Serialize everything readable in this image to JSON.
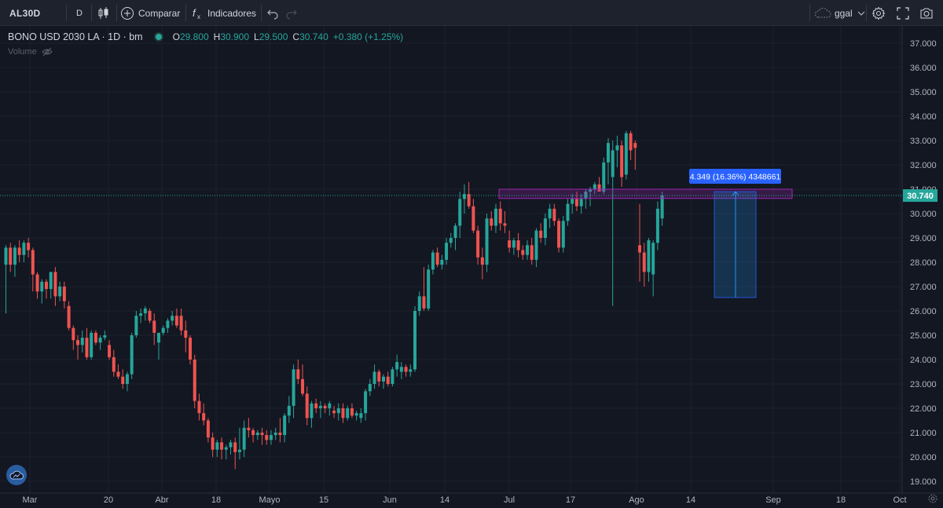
{
  "toolbar": {
    "symbol": "AL30D",
    "interval": "D",
    "compare_label": "Comparar",
    "indicators_label": "Indicadores",
    "layout_name": "ggal",
    "icons": [
      "bar-style-icon",
      "compare-plus-icon",
      "indicators-fx-icon",
      "undo-icon",
      "redo-icon",
      "cloud-icon",
      "settings-gear-icon",
      "fullscreen-icon",
      "camera-icon"
    ]
  },
  "legend": {
    "title": "BONO USD 2030 LA · 1D · bm",
    "open_label": "O",
    "open": "29.800",
    "high_label": "H",
    "high": "30.900",
    "low_label": "L",
    "low": "29.500",
    "close_label": "C",
    "close": "30.740",
    "change": "+0.380 (+1.25%)",
    "volume_label": "Volume"
  },
  "colors": {
    "up": "#26a69a",
    "down": "#ef5350",
    "background": "#131722",
    "grid": "#1e222d",
    "accent": "#2962ff"
  },
  "chart_data": {
    "type": "candlestick",
    "symbol": "BONO USD 2030 LA",
    "interval": "1D",
    "ylim": [
      18.6,
      37.6
    ],
    "y_ticks": [
      "37.000",
      "36.000",
      "35.000",
      "34.000",
      "33.000",
      "32.000",
      "31.000",
      "30.000",
      "29.000",
      "28.000",
      "27.000",
      "26.000",
      "25.000",
      "24.000",
      "23.000",
      "22.000",
      "21.000",
      "20.000",
      "19.000"
    ],
    "x_ticks": [
      "Mar",
      "20",
      "Abr",
      "18",
      "Mayo",
      "15",
      "Jun",
      "14",
      "Jul",
      "17",
      "Ago",
      "14",
      "Sep",
      "18",
      "Oct"
    ],
    "last_price": "30.740",
    "measure_label": "4.349 (16.36%) 4348661",
    "candles": [
      {
        "o": 27.9,
        "h": 28.7,
        "l": 25.9,
        "c": 28.6
      },
      {
        "o": 28.6,
        "h": 28.8,
        "l": 27.6,
        "c": 27.9
      },
      {
        "o": 27.9,
        "h": 28.7,
        "l": 27.4,
        "c": 28.6
      },
      {
        "o": 28.6,
        "h": 28.9,
        "l": 28.0,
        "c": 28.3
      },
      {
        "o": 28.3,
        "h": 28.9,
        "l": 28.0,
        "c": 28.8
      },
      {
        "o": 28.8,
        "h": 29.0,
        "l": 28.2,
        "c": 28.5
      },
      {
        "o": 28.5,
        "h": 28.6,
        "l": 26.8,
        "c": 27.5
      },
      {
        "o": 27.5,
        "h": 27.6,
        "l": 26.5,
        "c": 26.8
      },
      {
        "o": 26.8,
        "h": 27.3,
        "l": 26.3,
        "c": 27.2
      },
      {
        "o": 27.2,
        "h": 27.3,
        "l": 26.5,
        "c": 26.9
      },
      {
        "o": 26.9,
        "h": 27.6,
        "l": 26.5,
        "c": 27.6
      },
      {
        "o": 27.6,
        "h": 27.8,
        "l": 26.2,
        "c": 26.6
      },
      {
        "o": 26.6,
        "h": 27.2,
        "l": 26.4,
        "c": 27.0
      },
      {
        "o": 27.0,
        "h": 27.2,
        "l": 26.1,
        "c": 26.4
      },
      {
        "o": 26.2,
        "h": 26.4,
        "l": 25.2,
        "c": 25.3
      },
      {
        "o": 25.3,
        "h": 25.4,
        "l": 24.4,
        "c": 24.8
      },
      {
        "o": 24.8,
        "h": 25.0,
        "l": 24.0,
        "c": 24.6
      },
      {
        "o": 24.6,
        "h": 25.2,
        "l": 24.3,
        "c": 24.9
      },
      {
        "o": 24.9,
        "h": 25.3,
        "l": 24.0,
        "c": 24.1
      },
      {
        "o": 24.1,
        "h": 25.2,
        "l": 24.0,
        "c": 25.1
      },
      {
        "o": 25.1,
        "h": 25.2,
        "l": 24.6,
        "c": 24.7
      },
      {
        "o": 24.7,
        "h": 25.0,
        "l": 24.4,
        "c": 24.9
      },
      {
        "o": 24.9,
        "h": 25.2,
        "l": 24.8,
        "c": 25.0
      },
      {
        "o": 24.6,
        "h": 24.8,
        "l": 24.0,
        "c": 24.1
      },
      {
        "o": 24.1,
        "h": 24.4,
        "l": 23.3,
        "c": 23.5
      },
      {
        "o": 23.5,
        "h": 23.8,
        "l": 23.2,
        "c": 23.3
      },
      {
        "o": 23.3,
        "h": 23.6,
        "l": 22.8,
        "c": 23.0
      },
      {
        "o": 23.0,
        "h": 23.5,
        "l": 22.7,
        "c": 23.4
      },
      {
        "o": 23.4,
        "h": 25.1,
        "l": 23.2,
        "c": 25.0
      },
      {
        "o": 25.0,
        "h": 26.0,
        "l": 24.9,
        "c": 25.8
      },
      {
        "o": 25.8,
        "h": 26.1,
        "l": 25.5,
        "c": 25.9
      },
      {
        "o": 25.9,
        "h": 26.2,
        "l": 25.6,
        "c": 26.1
      },
      {
        "o": 26.0,
        "h": 26.1,
        "l": 25.5,
        "c": 25.6
      },
      {
        "o": 25.6,
        "h": 25.9,
        "l": 24.6,
        "c": 25.1
      },
      {
        "o": 24.7,
        "h": 25.1,
        "l": 24.0,
        "c": 25.1
      },
      {
        "o": 25.1,
        "h": 25.4,
        "l": 25.0,
        "c": 25.3
      },
      {
        "o": 25.3,
        "h": 25.7,
        "l": 25.1,
        "c": 25.6
      },
      {
        "o": 25.6,
        "h": 26.0,
        "l": 25.4,
        "c": 25.8
      },
      {
        "o": 25.8,
        "h": 26.1,
        "l": 25.3,
        "c": 25.4
      },
      {
        "o": 25.8,
        "h": 26.1,
        "l": 25.0,
        "c": 25.2
      },
      {
        "o": 25.2,
        "h": 25.6,
        "l": 24.3,
        "c": 24.9
      },
      {
        "o": 24.9,
        "h": 25.0,
        "l": 23.8,
        "c": 24.0
      },
      {
        "o": 24.0,
        "h": 24.2,
        "l": 22.0,
        "c": 22.3
      },
      {
        "o": 22.3,
        "h": 22.6,
        "l": 21.5,
        "c": 21.8
      },
      {
        "o": 21.8,
        "h": 22.2,
        "l": 21.3,
        "c": 21.5
      },
      {
        "o": 21.5,
        "h": 21.6,
        "l": 20.6,
        "c": 20.8
      },
      {
        "o": 20.8,
        "h": 21.0,
        "l": 20.0,
        "c": 20.3
      },
      {
        "o": 20.3,
        "h": 20.7,
        "l": 20.0,
        "c": 20.6
      },
      {
        "o": 20.6,
        "h": 20.8,
        "l": 19.9,
        "c": 20.3
      },
      {
        "o": 20.3,
        "h": 20.5,
        "l": 19.9,
        "c": 20.4
      },
      {
        "o": 20.4,
        "h": 20.7,
        "l": 20.1,
        "c": 20.6
      },
      {
        "o": 20.6,
        "h": 20.8,
        "l": 19.5,
        "c": 20.2
      },
      {
        "o": 20.2,
        "h": 21.2,
        "l": 19.9,
        "c": 20.3
      },
      {
        "o": 20.3,
        "h": 21.5,
        "l": 20.0,
        "c": 21.2
      },
      {
        "o": 21.2,
        "h": 21.6,
        "l": 20.8,
        "c": 21.1
      },
      {
        "o": 21.1,
        "h": 21.2,
        "l": 20.6,
        "c": 20.9
      },
      {
        "o": 20.9,
        "h": 21.1,
        "l": 20.7,
        "c": 21.0
      },
      {
        "o": 21.0,
        "h": 21.2,
        "l": 20.5,
        "c": 20.9
      },
      {
        "o": 20.9,
        "h": 21.1,
        "l": 20.5,
        "c": 20.7
      },
      {
        "o": 20.7,
        "h": 21.1,
        "l": 20.5,
        "c": 20.9
      },
      {
        "o": 20.9,
        "h": 21.2,
        "l": 20.7,
        "c": 21.0
      },
      {
        "o": 21.0,
        "h": 21.6,
        "l": 20.6,
        "c": 20.9
      },
      {
        "o": 20.9,
        "h": 21.8,
        "l": 20.6,
        "c": 21.7
      },
      {
        "o": 21.7,
        "h": 22.5,
        "l": 21.4,
        "c": 22.1
      },
      {
        "o": 22.1,
        "h": 23.8,
        "l": 21.6,
        "c": 23.6
      },
      {
        "o": 23.6,
        "h": 24.0,
        "l": 23.0,
        "c": 23.2
      },
      {
        "o": 23.2,
        "h": 23.8,
        "l": 22.5,
        "c": 22.6
      },
      {
        "o": 22.6,
        "h": 22.9,
        "l": 21.3,
        "c": 21.6
      },
      {
        "o": 21.6,
        "h": 22.3,
        "l": 21.2,
        "c": 22.2
      },
      {
        "o": 22.2,
        "h": 22.4,
        "l": 21.8,
        "c": 22.0
      },
      {
        "o": 22.0,
        "h": 22.3,
        "l": 21.6,
        "c": 22.1
      },
      {
        "o": 22.1,
        "h": 22.2,
        "l": 21.8,
        "c": 22.0
      },
      {
        "o": 22.0,
        "h": 22.3,
        "l": 21.7,
        "c": 22.2
      },
      {
        "o": 21.9,
        "h": 22.1,
        "l": 21.6,
        "c": 21.8
      },
      {
        "o": 21.8,
        "h": 22.2,
        "l": 21.5,
        "c": 22.0
      },
      {
        "o": 22.0,
        "h": 22.2,
        "l": 21.4,
        "c": 21.6
      },
      {
        "o": 21.6,
        "h": 22.1,
        "l": 21.5,
        "c": 22.0
      },
      {
        "o": 22.0,
        "h": 22.2,
        "l": 21.6,
        "c": 21.7
      },
      {
        "o": 21.7,
        "h": 21.9,
        "l": 21.5,
        "c": 21.8
      },
      {
        "o": 21.6,
        "h": 22.0,
        "l": 21.4,
        "c": 21.8
      },
      {
        "o": 21.8,
        "h": 22.8,
        "l": 21.5,
        "c": 22.7
      },
      {
        "o": 22.7,
        "h": 23.2,
        "l": 22.5,
        "c": 23.0
      },
      {
        "o": 23.0,
        "h": 23.8,
        "l": 22.8,
        "c": 23.5
      },
      {
        "o": 23.5,
        "h": 23.6,
        "l": 22.9,
        "c": 23.1
      },
      {
        "o": 23.1,
        "h": 23.4,
        "l": 22.8,
        "c": 23.3
      },
      {
        "o": 23.3,
        "h": 23.5,
        "l": 22.9,
        "c": 23.0
      },
      {
        "o": 23.0,
        "h": 23.7,
        "l": 22.9,
        "c": 23.6
      },
      {
        "o": 23.6,
        "h": 24.2,
        "l": 23.3,
        "c": 23.9
      },
      {
        "o": 23.5,
        "h": 23.9,
        "l": 23.2,
        "c": 23.7
      },
      {
        "o": 23.7,
        "h": 23.8,
        "l": 23.3,
        "c": 23.5
      },
      {
        "o": 23.5,
        "h": 23.8,
        "l": 23.3,
        "c": 23.6
      },
      {
        "o": 23.6,
        "h": 26.2,
        "l": 23.5,
        "c": 26.0
      },
      {
        "o": 26.0,
        "h": 26.8,
        "l": 25.8,
        "c": 26.6
      },
      {
        "o": 26.6,
        "h": 27.8,
        "l": 26.0,
        "c": 26.1
      },
      {
        "o": 26.1,
        "h": 27.9,
        "l": 26.0,
        "c": 27.7
      },
      {
        "o": 27.7,
        "h": 28.5,
        "l": 27.5,
        "c": 28.4
      },
      {
        "o": 28.4,
        "h": 28.6,
        "l": 27.8,
        "c": 27.9
      },
      {
        "o": 27.9,
        "h": 28.3,
        "l": 27.7,
        "c": 28.1
      },
      {
        "o": 28.1,
        "h": 29.0,
        "l": 27.9,
        "c": 28.8
      },
      {
        "o": 28.8,
        "h": 29.2,
        "l": 28.6,
        "c": 29.0
      },
      {
        "o": 29.0,
        "h": 29.6,
        "l": 28.5,
        "c": 29.5
      },
      {
        "o": 29.5,
        "h": 30.9,
        "l": 29.0,
        "c": 30.6
      },
      {
        "o": 30.6,
        "h": 31.2,
        "l": 30.0,
        "c": 30.8
      },
      {
        "o": 30.8,
        "h": 31.3,
        "l": 30.2,
        "c": 30.3
      },
      {
        "o": 30.3,
        "h": 30.6,
        "l": 29.2,
        "c": 29.3
      },
      {
        "o": 29.3,
        "h": 29.5,
        "l": 27.9,
        "c": 28.2
      },
      {
        "o": 28.2,
        "h": 28.6,
        "l": 27.3,
        "c": 27.9
      },
      {
        "o": 27.9,
        "h": 30.0,
        "l": 27.6,
        "c": 29.8
      },
      {
        "o": 29.8,
        "h": 30.1,
        "l": 29.3,
        "c": 29.5
      },
      {
        "o": 29.5,
        "h": 30.4,
        "l": 29.2,
        "c": 30.2
      },
      {
        "o": 30.2,
        "h": 30.5,
        "l": 29.3,
        "c": 29.6
      },
      {
        "o": 29.6,
        "h": 30.1,
        "l": 29.2,
        "c": 29.5
      },
      {
        "o": 28.9,
        "h": 29.3,
        "l": 28.4,
        "c": 28.6
      },
      {
        "o": 28.6,
        "h": 29.0,
        "l": 28.3,
        "c": 28.9
      },
      {
        "o": 28.9,
        "h": 29.2,
        "l": 28.2,
        "c": 28.5
      },
      {
        "o": 28.5,
        "h": 28.7,
        "l": 28.1,
        "c": 28.3
      },
      {
        "o": 28.3,
        "h": 28.9,
        "l": 28.1,
        "c": 28.7
      },
      {
        "o": 28.7,
        "h": 29.0,
        "l": 27.9,
        "c": 28.1
      },
      {
        "o": 28.1,
        "h": 29.4,
        "l": 27.8,
        "c": 29.3
      },
      {
        "o": 29.3,
        "h": 29.6,
        "l": 28.8,
        "c": 29.0
      },
      {
        "o": 29.0,
        "h": 30.0,
        "l": 28.7,
        "c": 29.8
      },
      {
        "o": 29.8,
        "h": 30.4,
        "l": 29.4,
        "c": 30.2
      },
      {
        "o": 30.2,
        "h": 30.4,
        "l": 29.5,
        "c": 29.7
      },
      {
        "o": 29.7,
        "h": 29.8,
        "l": 28.4,
        "c": 28.6
      },
      {
        "o": 28.6,
        "h": 29.9,
        "l": 28.4,
        "c": 29.7
      },
      {
        "o": 29.7,
        "h": 30.6,
        "l": 29.5,
        "c": 30.4
      },
      {
        "o": 30.4,
        "h": 30.8,
        "l": 30.0,
        "c": 30.6
      },
      {
        "o": 30.6,
        "h": 30.9,
        "l": 30.1,
        "c": 30.3
      },
      {
        "o": 30.3,
        "h": 30.8,
        "l": 30.0,
        "c": 30.6
      },
      {
        "o": 30.6,
        "h": 31.0,
        "l": 30.2,
        "c": 30.9
      },
      {
        "o": 30.9,
        "h": 31.1,
        "l": 30.3,
        "c": 31.0
      },
      {
        "o": 31.0,
        "h": 31.3,
        "l": 30.8,
        "c": 31.2
      },
      {
        "o": 31.2,
        "h": 31.5,
        "l": 30.9,
        "c": 30.9
      },
      {
        "o": 30.9,
        "h": 32.3,
        "l": 30.8,
        "c": 32.1
      },
      {
        "o": 32.1,
        "h": 33.1,
        "l": 31.2,
        "c": 32.9
      },
      {
        "o": 31.5,
        "h": 33.0,
        "l": 26.2,
        "c": 32.6
      },
      {
        "o": 32.6,
        "h": 33.2,
        "l": 31.9,
        "c": 32.8
      },
      {
        "o": 32.8,
        "h": 33.0,
        "l": 31.1,
        "c": 31.5
      },
      {
        "o": 31.6,
        "h": 33.4,
        "l": 31.4,
        "c": 33.3
      },
      {
        "o": 33.3,
        "h": 33.4,
        "l": 32.2,
        "c": 32.6
      },
      {
        "o": 32.9,
        "h": 33.0,
        "l": 31.8,
        "c": 32.7
      },
      {
        "o": 28.7,
        "h": 30.4,
        "l": 27.2,
        "c": 28.4
      },
      {
        "o": 28.4,
        "h": 28.8,
        "l": 27.0,
        "c": 27.6
      },
      {
        "o": 27.6,
        "h": 29.0,
        "l": 27.2,
        "c": 28.9
      },
      {
        "o": 27.5,
        "h": 28.9,
        "l": 26.6,
        "c": 28.8
      },
      {
        "o": 28.8,
        "h": 30.5,
        "l": 28.5,
        "c": 30.2
      },
      {
        "o": 29.8,
        "h": 30.9,
        "l": 29.5,
        "c": 30.74
      }
    ]
  }
}
